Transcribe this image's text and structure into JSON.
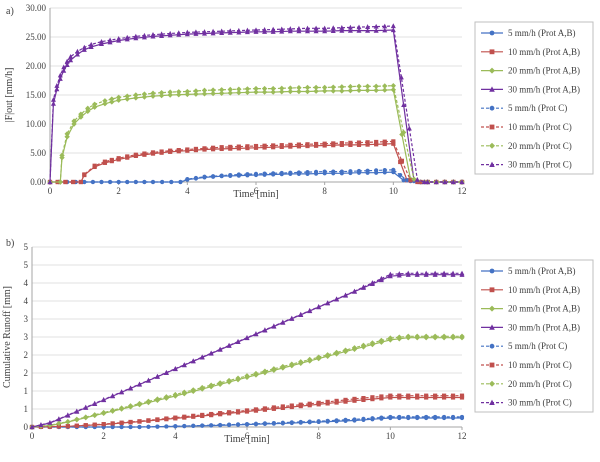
{
  "colors": {
    "blue": "#4472c4",
    "red": "#c0504d",
    "green": "#9bbb59",
    "purple": "#7030a0",
    "grid": "#d9d9d9",
    "axis": "#a6a6a6"
  },
  "chart_data": [
    {
      "type": "line",
      "panel_label": "a)",
      "xlabel": "Time [min]",
      "ylabel": "|F|out [mm/h]",
      "xlim": [
        0,
        12
      ],
      "ylim": [
        0,
        30
      ],
      "x_ticks": [
        0,
        2,
        4,
        6,
        8,
        10,
        12
      ],
      "y_ticks": [
        0,
        5,
        10,
        15,
        20,
        25,
        30
      ],
      "y_tick_labels": [
        "0.00",
        "5.00",
        "10.00",
        "15.00",
        "20.00",
        "25.00",
        "30.00"
      ],
      "grid": "horizontal",
      "legend_position": "right",
      "series": [
        {
          "name": "5 mm/h (Prot A,B)",
          "color": "blue",
          "dash": "solid",
          "marker": "circle",
          "x": [
            0,
            1,
            2,
            3,
            3.8,
            4,
            4.5,
            5,
            5.5,
            6,
            6.5,
            7,
            7.5,
            8,
            8.5,
            9,
            9.5,
            10,
            10.3,
            10.7,
            11,
            11.5,
            12
          ],
          "y": [
            0,
            0,
            0,
            0,
            0,
            0.4,
            0.8,
            1.0,
            1.1,
            1.2,
            1.3,
            1.4,
            1.4,
            1.5,
            1.5,
            1.6,
            1.6,
            1.7,
            0.3,
            0,
            0,
            0,
            0
          ]
        },
        {
          "name": "10 mm/h (Prot A,B)",
          "color": "red",
          "dash": "solid",
          "marker": "square",
          "x": [
            0,
            0.9,
            1.0,
            1.3,
            1.6,
            2,
            2.5,
            3,
            3.5,
            4,
            4.5,
            5,
            5.5,
            6,
            6.5,
            7,
            7.5,
            8,
            8.5,
            9,
            9.5,
            10,
            10.4,
            10.7,
            11,
            11.5,
            12
          ],
          "y": [
            0,
            0,
            1.2,
            2.6,
            3.3,
            3.9,
            4.5,
            4.9,
            5.2,
            5.4,
            5.6,
            5.7,
            5.8,
            5.9,
            6.0,
            6.1,
            6.2,
            6.3,
            6.4,
            6.4,
            6.5,
            6.6,
            0.3,
            0,
            0,
            0,
            0
          ]
        },
        {
          "name": "20 mm/h (Prot A,B)",
          "color": "green",
          "dash": "solid",
          "marker": "diamond",
          "x": [
            0,
            0.3,
            0.35,
            0.5,
            0.7,
            0.9,
            1.1,
            1.3,
            1.6,
            2,
            2.5,
            3,
            3.5,
            4,
            4.5,
            5,
            5.5,
            6,
            6.5,
            7,
            7.5,
            8,
            8.5,
            9,
            9.5,
            10,
            10.5,
            10.8,
            11,
            11.5,
            12
          ],
          "y": [
            0,
            0,
            4.2,
            7.8,
            10.0,
            11.2,
            12.2,
            12.9,
            13.5,
            14.1,
            14.5,
            14.8,
            15.0,
            15.1,
            15.2,
            15.3,
            15.4,
            15.5,
            15.5,
            15.6,
            15.6,
            15.7,
            15.7,
            15.8,
            15.8,
            15.9,
            0.5,
            0,
            0,
            0,
            0
          ]
        },
        {
          "name": "30 mm/h (Prot A,B)",
          "color": "purple",
          "dash": "solid",
          "marker": "triangle",
          "x": [
            0,
            0.1,
            0.2,
            0.3,
            0.4,
            0.5,
            0.6,
            0.8,
            1.0,
            1.2,
            1.5,
            2,
            2.5,
            3,
            3.5,
            4,
            4.5,
            5,
            5.5,
            6,
            6.5,
            7,
            7.5,
            8,
            8.5,
            9,
            9.5,
            10,
            10.6,
            10.8,
            11,
            11.5,
            12
          ],
          "y": [
            0,
            13.5,
            16.0,
            17.8,
            19.2,
            20.2,
            21.0,
            22.0,
            22.8,
            23.3,
            23.8,
            24.4,
            24.8,
            25.1,
            25.3,
            25.5,
            25.6,
            25.7,
            25.8,
            25.9,
            25.9,
            26.0,
            26.0,
            26.0,
            26.1,
            26.1,
            26.1,
            26.2,
            0.4,
            0,
            0,
            0,
            0
          ]
        },
        {
          "name": "5 mm/h (Prot C)",
          "color": "blue",
          "dash": "dashed",
          "marker": "circle",
          "x": [
            0,
            1,
            2,
            3,
            3.8,
            4,
            4.5,
            5,
            5.5,
            6,
            6.5,
            7,
            7.5,
            8,
            8.5,
            9,
            9.5,
            10,
            10.4,
            10.8,
            11,
            11.5,
            12
          ],
          "y": [
            0,
            0,
            0,
            0,
            0,
            0.5,
            0.9,
            1.1,
            1.3,
            1.4,
            1.5,
            1.6,
            1.7,
            1.8,
            1.8,
            1.9,
            2.0,
            2.1,
            0.3,
            0,
            0,
            0,
            0
          ]
        },
        {
          "name": "10 mm/h (Prot C)",
          "color": "red",
          "dash": "dashed",
          "marker": "square",
          "x": [
            0,
            0.9,
            1.0,
            1.3,
            1.6,
            2,
            2.5,
            3,
            3.5,
            4,
            4.5,
            5,
            5.5,
            6,
            6.5,
            7,
            7.5,
            8,
            8.5,
            9,
            9.5,
            10,
            10.5,
            10.8,
            11,
            11.5,
            12
          ],
          "y": [
            0,
            0,
            1.3,
            2.8,
            3.5,
            4.1,
            4.7,
            5.1,
            5.4,
            5.6,
            5.8,
            6.0,
            6.1,
            6.2,
            6.3,
            6.4,
            6.5,
            6.6,
            6.7,
            6.8,
            6.9,
            7.0,
            0.3,
            0,
            0,
            0,
            0
          ]
        },
        {
          "name": "20 mm/h (Prot C)",
          "color": "green",
          "dash": "dashed",
          "marker": "diamond",
          "x": [
            0,
            0.3,
            0.35,
            0.5,
            0.7,
            0.9,
            1.1,
            1.3,
            1.6,
            2,
            2.5,
            3,
            3.5,
            4,
            4.5,
            5,
            5.5,
            6,
            6.5,
            7,
            7.5,
            8,
            8.5,
            9,
            9.5,
            10,
            10.6,
            10.9,
            11,
            11.5,
            12
          ],
          "y": [
            0,
            0,
            4.6,
            8.3,
            10.5,
            11.7,
            12.7,
            13.4,
            14.0,
            14.6,
            15.0,
            15.3,
            15.5,
            15.6,
            15.8,
            15.9,
            16.0,
            16.1,
            16.1,
            16.2,
            16.3,
            16.3,
            16.4,
            16.5,
            16.5,
            16.6,
            0.5,
            0,
            0,
            0,
            0
          ]
        },
        {
          "name": "30 mm/h (Prot C)",
          "color": "purple",
          "dash": "dashed",
          "marker": "triangle",
          "x": [
            0,
            0.1,
            0.2,
            0.3,
            0.4,
            0.5,
            0.6,
            0.8,
            1.0,
            1.2,
            1.5,
            2,
            2.5,
            3,
            3.5,
            4,
            4.5,
            5,
            5.5,
            6,
            6.5,
            7,
            7.5,
            8,
            8.5,
            9,
            9.5,
            10,
            10.7,
            10.9,
            11,
            11.5,
            12
          ],
          "y": [
            0,
            14.2,
            16.6,
            18.4,
            19.8,
            20.8,
            21.6,
            22.5,
            23.2,
            23.7,
            24.2,
            24.7,
            25.1,
            25.4,
            25.6,
            25.8,
            25.9,
            26.0,
            26.1,
            26.2,
            26.3,
            26.4,
            26.5,
            26.5,
            26.6,
            26.7,
            26.8,
            26.9,
            0.4,
            0,
            0,
            0,
            0
          ]
        }
      ]
    },
    {
      "type": "line",
      "panel_label": "b)",
      "xlabel": "Time [min]",
      "ylabel": "Cumulative Runoff [mm]",
      "xlim": [
        0,
        12
      ],
      "ylim": [
        0,
        5
      ],
      "x_ticks": [
        0,
        2,
        4,
        6,
        8,
        10,
        12
      ],
      "y_ticks": [
        0,
        0.5,
        1,
        1.5,
        2,
        2.5,
        3,
        3.5,
        4,
        4.5,
        5
      ],
      "y_tick_labels": [
        "0",
        "1",
        "1",
        "2",
        "2",
        "3",
        "3",
        "4",
        "4",
        "5",
        "5"
      ],
      "grid": "horizontal",
      "legend_position": "right",
      "series": [
        {
          "name": "5 mm/h (Prot A,B)",
          "color": "blue",
          "dash": "solid",
          "marker": "circle",
          "x": [
            0,
            1,
            2,
            3,
            4,
            5,
            6,
            7,
            8,
            9,
            10,
            10.5,
            11,
            11.5,
            12
          ],
          "y": [
            0,
            0,
            0,
            0,
            0.02,
            0.04,
            0.07,
            0.1,
            0.14,
            0.18,
            0.25,
            0.25,
            0.25,
            0.25,
            0.25
          ]
        },
        {
          "name": "10 mm/h (Prot A,B)",
          "color": "red",
          "dash": "solid",
          "marker": "square",
          "x": [
            0,
            1,
            2,
            3,
            4,
            5,
            6,
            7,
            8,
            9,
            10,
            10.5,
            11,
            11.5,
            12
          ],
          "y": [
            0,
            0.02,
            0.07,
            0.15,
            0.24,
            0.33,
            0.43,
            0.53,
            0.63,
            0.73,
            0.82,
            0.82,
            0.82,
            0.82,
            0.82
          ]
        },
        {
          "name": "20 mm/h (Prot A,B)",
          "color": "green",
          "dash": "solid",
          "marker": "diamond",
          "x": [
            0,
            0.5,
            1,
            2,
            3,
            4,
            5,
            6,
            7,
            8,
            9,
            10,
            10.5,
            11,
            11.5,
            12
          ],
          "y": [
            0,
            0.04,
            0.14,
            0.38,
            0.62,
            0.86,
            1.12,
            1.38,
            1.64,
            1.9,
            2.16,
            2.42,
            2.48,
            2.48,
            2.48,
            2.48
          ]
        },
        {
          "name": "30 mm/h (Prot A,B)",
          "color": "purple",
          "dash": "solid",
          "marker": "triangle",
          "x": [
            0,
            0.5,
            1,
            2,
            3,
            4,
            5,
            6,
            7,
            8,
            9,
            10,
            10.5,
            11,
            11.5,
            12
          ],
          "y": [
            0,
            0.11,
            0.32,
            0.75,
            1.18,
            1.61,
            2.04,
            2.47,
            2.9,
            3.33,
            3.76,
            4.19,
            4.23,
            4.23,
            4.23,
            4.23
          ]
        },
        {
          "name": "5 mm/h (Prot C)",
          "color": "blue",
          "dash": "dashed",
          "marker": "circle",
          "x": [
            0,
            1,
            2,
            3,
            4,
            5,
            6,
            7,
            8,
            9,
            10,
            10.5,
            11,
            11.5,
            12
          ],
          "y": [
            0,
            0,
            0,
            0,
            0.02,
            0.05,
            0.08,
            0.12,
            0.16,
            0.21,
            0.28,
            0.28,
            0.28,
            0.28,
            0.28
          ]
        },
        {
          "name": "10 mm/h (Prot C)",
          "color": "red",
          "dash": "dashed",
          "marker": "square",
          "x": [
            0,
            1,
            2,
            3,
            4,
            5,
            6,
            7,
            8,
            9,
            10,
            10.5,
            11,
            11.5,
            12
          ],
          "y": [
            0,
            0.02,
            0.08,
            0.16,
            0.26,
            0.36,
            0.46,
            0.57,
            0.67,
            0.78,
            0.87,
            0.87,
            0.87,
            0.87,
            0.87
          ]
        },
        {
          "name": "20 mm/h (Prot C)",
          "color": "green",
          "dash": "dashed",
          "marker": "diamond",
          "x": [
            0,
            0.5,
            1,
            2,
            3,
            4,
            5,
            6,
            7,
            8,
            9,
            10,
            10.5,
            11,
            11.5,
            12
          ],
          "y": [
            0,
            0.05,
            0.15,
            0.4,
            0.65,
            0.9,
            1.16,
            1.42,
            1.68,
            1.94,
            2.2,
            2.47,
            2.52,
            2.52,
            2.52,
            2.52
          ]
        },
        {
          "name": "30 mm/h (Prot C)",
          "color": "purple",
          "dash": "dashed",
          "marker": "triangle",
          "x": [
            0,
            0.5,
            1,
            2,
            3,
            4,
            5,
            6,
            7,
            8,
            9,
            10,
            10.5,
            11,
            11.5,
            12
          ],
          "y": [
            0,
            0.12,
            0.33,
            0.76,
            1.19,
            1.62,
            2.05,
            2.48,
            2.91,
            3.34,
            3.77,
            4.24,
            4.27,
            4.27,
            4.27,
            4.27
          ]
        }
      ]
    }
  ]
}
